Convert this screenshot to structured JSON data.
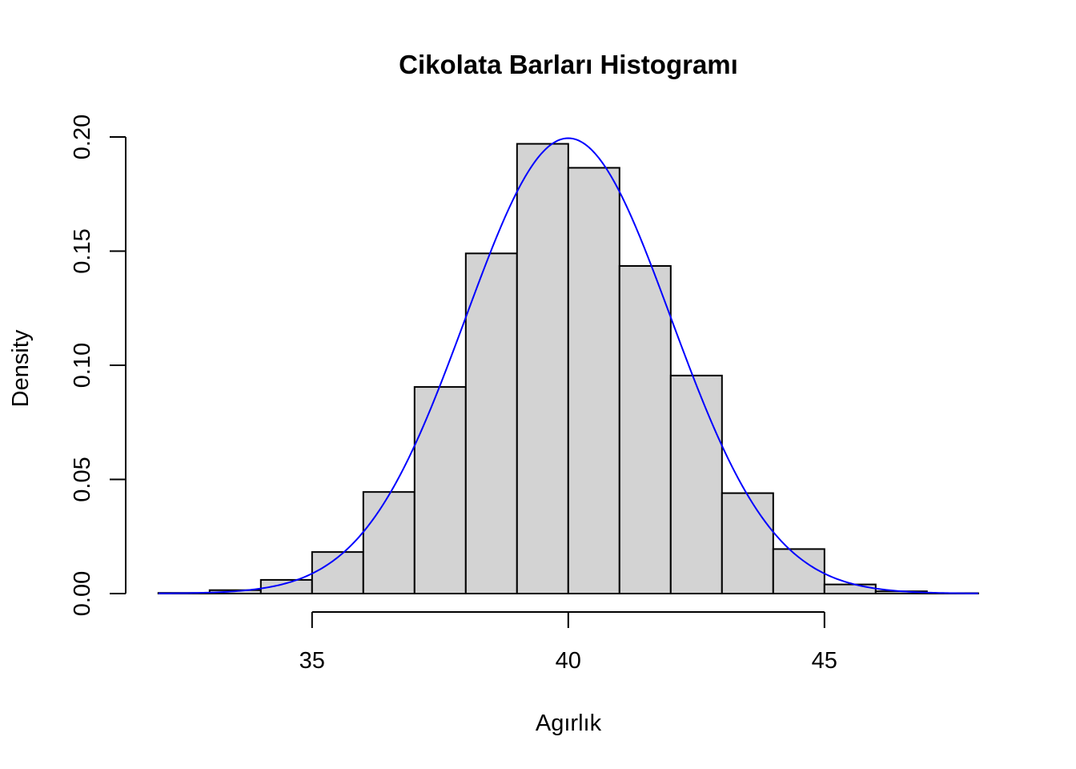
{
  "chart_data": {
    "type": "bar",
    "title": "Cikolata Barları Histogramı",
    "xlabel": "Agırlık",
    "ylabel": "Density",
    "xlim": [
      32,
      48
    ],
    "ylim": [
      0,
      0.2
    ],
    "x_ticks": [
      35,
      40,
      45
    ],
    "y_ticks": [
      0.0,
      0.05,
      0.1,
      0.15,
      0.2
    ],
    "y_tick_labels": [
      "0.00",
      "0.05",
      "0.10",
      "0.15",
      "0.20"
    ],
    "grid": false,
    "legend": "none",
    "bins": [
      {
        "start": 32,
        "end": 33,
        "density": 0.0003
      },
      {
        "start": 33,
        "end": 34,
        "density": 0.0015
      },
      {
        "start": 34,
        "end": 35,
        "density": 0.006
      },
      {
        "start": 35,
        "end": 36,
        "density": 0.0182
      },
      {
        "start": 36,
        "end": 37,
        "density": 0.0445
      },
      {
        "start": 37,
        "end": 38,
        "density": 0.0905
      },
      {
        "start": 38,
        "end": 39,
        "density": 0.149
      },
      {
        "start": 39,
        "end": 40,
        "density": 0.197
      },
      {
        "start": 40,
        "end": 41,
        "density": 0.1865
      },
      {
        "start": 41,
        "end": 42,
        "density": 0.1435
      },
      {
        "start": 42,
        "end": 43,
        "density": 0.0955
      },
      {
        "start": 43,
        "end": 44,
        "density": 0.044
      },
      {
        "start": 44,
        "end": 45,
        "density": 0.0195
      },
      {
        "start": 45,
        "end": 46,
        "density": 0.004
      },
      {
        "start": 46,
        "end": 47,
        "density": 0.001
      },
      {
        "start": 47,
        "end": 48,
        "density": 0.0002
      }
    ],
    "density_curve": {
      "distribution": "normal",
      "mean": 40,
      "sd": 2,
      "x_range": [
        32,
        48
      ],
      "color": "#0000ff"
    },
    "bar_fill": "#d3d3d3",
    "bar_stroke": "#000000"
  }
}
